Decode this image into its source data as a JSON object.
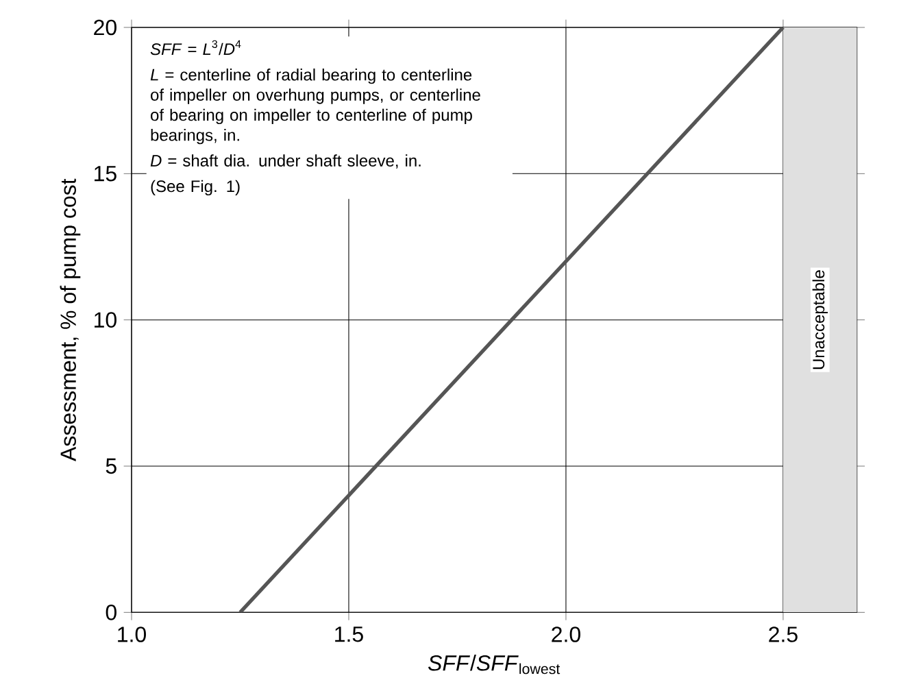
{
  "chart_data": {
    "type": "line",
    "xlabel": "*SFF*/*SFF*$_{lowest}$",
    "ylabel": "Assessment, % of pump cost",
    "x": [
      1.25,
      2.5
    ],
    "series": [
      {
        "color": "#555555",
        "values": [
          0,
          20
        ]
      }
    ],
    "xlim": [
      1.0,
      2.67
    ],
    "xticks": [
      {
        "value": 1.0,
        "label": "1.0"
      },
      1.5,
      {
        "value": 2.0,
        "label": "2.0"
      },
      2.5
    ],
    "ylim": [
      0,
      20
    ],
    "yticks": [
      0,
      5,
      10,
      15,
      20
    ],
    "grid": true,
    "bands": [
      {
        "axis": "x",
        "from": 2.5,
        "to": 2.67,
        "label": "Unacceptable",
        "color": "#e0e0e0"
      }
    ],
    "annotations": [
      "*SFF* = *L*$^{3}$/*D*$^{4}$",
      "*L* = centerline of radial bearing to centerline of impeller on overhung pumps, or centerline of bearing on impeller to centerline of pump bearings, in.",
      "*D* = shaft dia. under shaft sleeve, in.",
      "(See Fig. 1)"
    ]
  }
}
